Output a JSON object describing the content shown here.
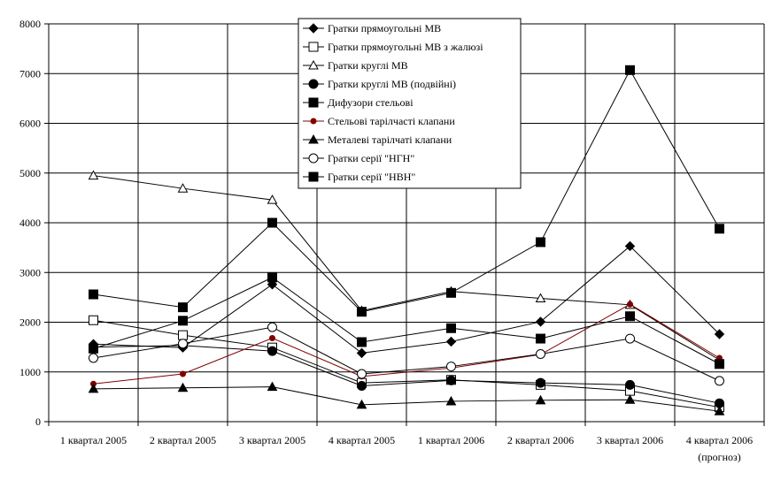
{
  "chart_data": {
    "type": "line",
    "title": "",
    "xlabel": "",
    "ylabel": "",
    "ylim": [
      0,
      8000
    ],
    "yticks": [
      0,
      1000,
      2000,
      3000,
      4000,
      5000,
      6000,
      7000,
      8000
    ],
    "grid": true,
    "legend_position": "top-center",
    "categories": [
      "1 квартал 2005",
      "2 квартал 2005",
      "3 квартал 2005",
      "4 квартал 2005",
      "1 квартал 2006",
      "2 квартал 2006",
      "3 квартал 2006",
      "4 квартал 2006"
    ],
    "category_sublabels": [
      "",
      "",
      "",
      "",
      "",
      "",
      "",
      "(прогноз)"
    ],
    "series": [
      {
        "name": "Гратки прямоугольні МВ",
        "marker": "diamond",
        "color": "#000000",
        "values": [
          1560,
          1490,
          2760,
          1380,
          1610,
          2010,
          3530,
          1760
        ]
      },
      {
        "name": "Гратки прямоугольні МВ з жалюзі",
        "marker": "square-open",
        "color": "#000000",
        "values": [
          2040,
          1740,
          1490,
          780,
          840,
          740,
          620,
          290
        ]
      },
      {
        "name": "Гратки круглі МВ",
        "marker": "triangle-open",
        "color": "#000000",
        "values": [
          4950,
          4690,
          4460,
          2230,
          2620,
          2480,
          2350,
          1240
        ]
      },
      {
        "name": "Гратки круглі МВ (подвійні)",
        "marker": "circle",
        "color": "#000000",
        "values": [
          1500,
          1530,
          1420,
          720,
          830,
          780,
          740,
          370
        ]
      },
      {
        "name": "Дифузори стельові",
        "marker": "square",
        "color": "#000000",
        "values": [
          2560,
          2300,
          4000,
          2210,
          2590,
          3610,
          7070,
          3880
        ]
      },
      {
        "name": "Стельові тарілчасті клапани",
        "marker": "dot",
        "color": "#800000",
        "values": [
          760,
          960,
          1680,
          910,
          1080,
          1350,
          2360,
          1280
        ]
      },
      {
        "name": "Металеві тарілчаті клапани",
        "marker": "triangle",
        "color": "#000000",
        "values": [
          660,
          680,
          700,
          340,
          410,
          430,
          440,
          210
        ]
      },
      {
        "name": "Гратки серії \"НГН\"",
        "marker": "circle-open",
        "color": "#000000",
        "values": [
          1280,
          1570,
          1900,
          960,
          1110,
          1360,
          1670,
          820
        ]
      },
      {
        "name": "Гратки серії \"НВН\"",
        "marker": "square",
        "color": "#000000",
        "values": [
          1470,
          2030,
          2900,
          1600,
          1880,
          1670,
          2120,
          1160
        ]
      }
    ]
  }
}
